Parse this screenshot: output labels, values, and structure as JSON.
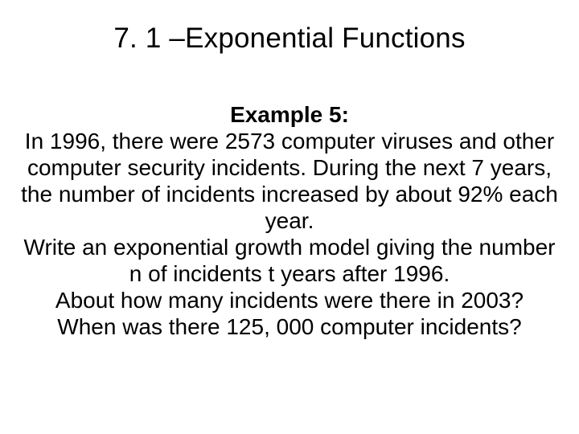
{
  "slide": {
    "title": "7. 1 –Exponential Functions",
    "example_label": "Example 5:",
    "p1": "In 1996, there were 2573 computer viruses and other computer security incidents.  During the next 7 years, the number of incidents increased by about 92% each year.",
    "p2": "Write an exponential growth model giving the number n of incidents t years after 1996.",
    "p3": "About how many incidents were there in 2003?",
    "p4": "When was there 125, 000 computer incidents?",
    "title_fontsize": 35,
    "body_fontsize": 28,
    "text_color": "#000000",
    "background_color": "#ffffff",
    "font_family": "Arial"
  }
}
